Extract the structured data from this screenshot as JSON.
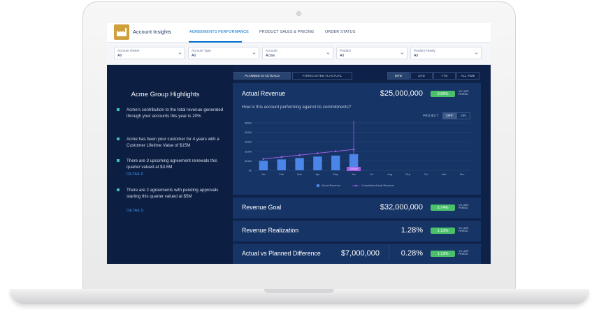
{
  "app": {
    "title": "Account Insights"
  },
  "nav": {
    "tabs": [
      {
        "label": "AGREEMENTS PERFORMANCE",
        "active": true
      },
      {
        "label": "PRODUCT SALES & PRICING",
        "active": false
      },
      {
        "label": "ORDER STATUS",
        "active": false
      }
    ]
  },
  "filters": [
    {
      "label": "Account Owner",
      "value": "All"
    },
    {
      "label": "Account Type",
      "value": "All"
    },
    {
      "label": "Account",
      "value": "Acme"
    },
    {
      "label": "Product",
      "value": "All"
    },
    {
      "label": "Product Family",
      "value": "All"
    }
  ],
  "highlights": {
    "title": "Acme Group Highlights",
    "items": [
      {
        "text": "Acme's contribution to the total revenue generated through your accounts this year is 20%",
        "link": ""
      },
      {
        "text": "Acme has been your customer for 4 years with a Customer Lifetime Value of $15M",
        "link": ""
      },
      {
        "text": "There are 3 upcoming agreement renewals this quarter valued at $3.5M",
        "link": "DETAILS"
      },
      {
        "text": "There are 2 agreements with pending approvals starting this quarter valued at $5M",
        "link": "DETAILS"
      }
    ]
  },
  "view_toggle": {
    "planned": "PLANNED vs ACTUALS",
    "forecasted": "FORECASTED vs ACTUAL",
    "active": "planned"
  },
  "period_toggle": {
    "options": [
      "MTD",
      "QTD",
      "YTD",
      "ALL TIME"
    ],
    "active": "MTD"
  },
  "vs_last_period": "VS LAST PERIOD",
  "actual_revenue": {
    "label": "Actual Revenue",
    "value": "$25,000,000",
    "change": "3.89%",
    "question": "How is this account performing against its commitments?",
    "project_label": "PROJECT",
    "project_options": [
      "OFF",
      "ON"
    ],
    "project_active": "OFF"
  },
  "chart_data": {
    "type": "bar",
    "categories": [
      "Jan",
      "Feb",
      "Mar",
      "Apr",
      "May",
      "Jun",
      "Jul",
      "Aug",
      "Sep",
      "Oct",
      "Nov",
      "Dec"
    ],
    "series": [
      {
        "name": "Actual Revenue",
        "type": "bar",
        "values": [
          10,
          11.5,
          13,
          14.5,
          15.5,
          17,
          null,
          null,
          null,
          null,
          null,
          null
        ]
      },
      {
        "name": "Cumulative Actual Revenue",
        "type": "line",
        "values": [
          12,
          14,
          16,
          18,
          20,
          22,
          null,
          null,
          null,
          null,
          null,
          null
        ]
      }
    ],
    "y_ticks": [
      "$0",
      "$10M",
      "$20M",
      "$30M",
      "$40M",
      "$50M"
    ],
    "ylim": [
      0,
      50
    ],
    "today_label": "TODAY",
    "today_category": "Jun",
    "legend_position": "bottom",
    "grid": true,
    "colors": {
      "bar": "#4a86e8",
      "line": "#a560e8"
    }
  },
  "metrics": [
    {
      "label": "Revenue Goal",
      "value": "$32,000,000",
      "change": "2.74%"
    },
    {
      "label": "Revenue Realization",
      "value": "1.28%",
      "change": "1.13%"
    },
    {
      "label": "Actual vs Planned Difference",
      "value": "$7,000,000",
      "value2": "0.28%",
      "change": "1.13%"
    }
  ]
}
